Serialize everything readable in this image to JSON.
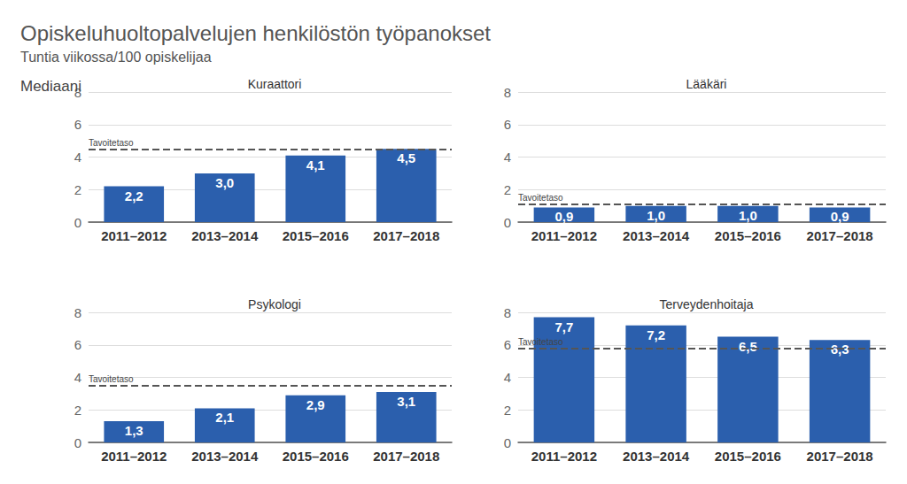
{
  "title": "Opiskeluhuoltopalvelujen henkilöstön työpanokset",
  "subtitle": "Tuntia viikossa/100 opiskelijaa",
  "ylabel": "Mediaani",
  "chart_data": [
    {
      "type": "bar",
      "title": "Kuraattori",
      "categories": [
        "2011–2012",
        "2013–2014",
        "2015–2016",
        "2017–2018"
      ],
      "values": [
        2.2,
        3.0,
        4.1,
        4.5
      ],
      "value_labels": [
        "2,2",
        "3,0",
        "4,1",
        "4,5"
      ],
      "color": "#2b5fad",
      "ylim": [
        0,
        8
      ],
      "yticks": [
        0,
        2,
        4,
        6,
        8
      ],
      "grid": true,
      "data_labels": true,
      "target": {
        "value": 4.5,
        "label": "Tavoitetaso"
      }
    },
    {
      "type": "bar",
      "title": "Lääkäri",
      "categories": [
        "2011–2012",
        "2013–2014",
        "2015–2016",
        "2017–2018"
      ],
      "values": [
        0.9,
        1.0,
        1.0,
        0.9
      ],
      "value_labels": [
        "0,9",
        "1,0",
        "1,0",
        "0,9"
      ],
      "color": "#2b5fad",
      "ylim": [
        0,
        8
      ],
      "yticks": [
        0,
        2,
        4,
        6,
        8
      ],
      "grid": true,
      "data_labels": true,
      "target": {
        "value": 1.1,
        "label": "Tavoitetaso"
      }
    },
    {
      "type": "bar",
      "title": "Psykologi",
      "categories": [
        "2011–2012",
        "2013–2014",
        "2015–2016",
        "2017–2018"
      ],
      "values": [
        1.3,
        2.1,
        2.9,
        3.1
      ],
      "value_labels": [
        "1,3",
        "2,1",
        "2,9",
        "3,1"
      ],
      "color": "#2b5fad",
      "ylim": [
        0,
        8
      ],
      "yticks": [
        0,
        2,
        4,
        6,
        8
      ],
      "grid": true,
      "data_labels": true,
      "target": {
        "value": 3.5,
        "label": "Tavoitetaso"
      }
    },
    {
      "type": "bar",
      "title": "Terveydenhoitaja",
      "categories": [
        "2011–2012",
        "2013–2014",
        "2015–2016",
        "2017–2018"
      ],
      "values": [
        7.7,
        7.2,
        6.5,
        6.3
      ],
      "value_labels": [
        "7,7",
        "7,2",
        "6,5",
        "6,3"
      ],
      "color": "#2b5fad",
      "ylim": [
        0,
        8
      ],
      "yticks": [
        0,
        2,
        4,
        6,
        8
      ],
      "grid": true,
      "data_labels": true,
      "target": {
        "value": 5.8,
        "label": "Tavoitetaso"
      }
    }
  ]
}
